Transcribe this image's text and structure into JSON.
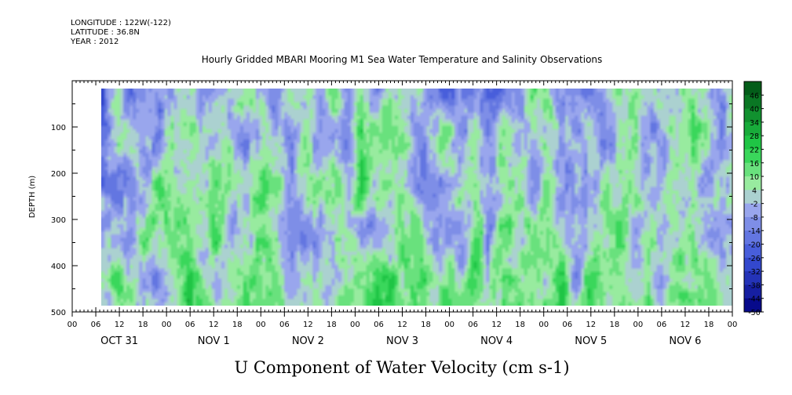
{
  "header": {
    "longitude": "LONGITUDE : 122W(-122)",
    "latitude": "LATITUDE : 36.8N",
    "year": "YEAR : 2012"
  },
  "chart_data": {
    "type": "heatmap",
    "title": "Hourly Gridded MBARI Mooring M1 Sea Water Temperature and Salinity Observations",
    "xlabel": "U Component of Water Velocity (cm s-1)",
    "ylabel": "DEPTH (m)",
    "ylim": [
      500,
      0
    ],
    "y_ticks": [
      100,
      200,
      300,
      400,
      500
    ],
    "x_hour_ticks": [
      "00",
      "06",
      "12",
      "18",
      "00",
      "06",
      "12",
      "18",
      "00",
      "06",
      "12",
      "18",
      "00",
      "06",
      "12",
      "18",
      "00",
      "06",
      "12",
      "18",
      "00",
      "06",
      "12",
      "18",
      "00",
      "06",
      "12",
      "18",
      "00"
    ],
    "day_labels": [
      "OCT 31",
      "NOV  1",
      "NOV  2",
      "NOV  3",
      "NOV  4",
      "NOV  5",
      "NOV  6"
    ],
    "colorbar": {
      "levels": [
        "46",
        "40",
        "34",
        "28",
        "22",
        "16",
        "10",
        "4",
        "-2",
        "-8",
        "-14",
        "-20",
        "-26",
        "-32",
        "-38",
        "-44",
        "-50"
      ],
      "range": [
        -50,
        52
      ],
      "step": 6
    },
    "colors": {
      "strong_negative": "#000080",
      "negative": "#3a52d8",
      "weak_negative": "#a6b2f0",
      "weak_positive": "#b0f0b0",
      "positive": "#22d24a",
      "strong_positive": "#005014"
    }
  }
}
